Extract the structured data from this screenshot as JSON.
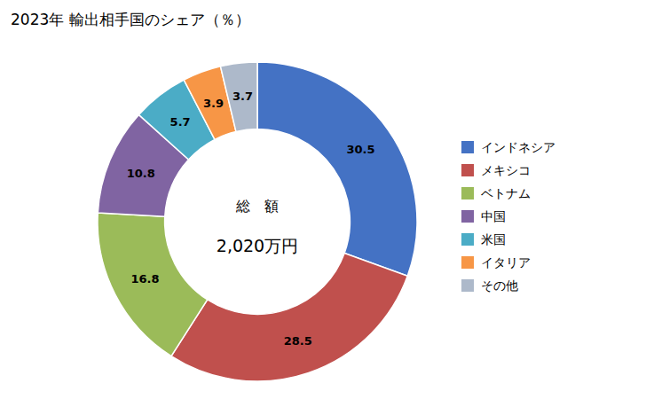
{
  "chart_data": {
    "type": "donut",
    "title": "2023年 輸出相手国のシェア（％）",
    "annotations": [
      "総　額",
      "2,020万円"
    ],
    "categories": [
      "インドネシア",
      "メキシコ",
      "ベトナム",
      "中国",
      "米国",
      "イタリア",
      "その他"
    ],
    "values": [
      30.5,
      28.5,
      16.8,
      10.8,
      5.7,
      3.9,
      3.7
    ],
    "colors": [
      "#4472C4",
      "#C0504D",
      "#9BBB59",
      "#8064A2",
      "#4BACC6",
      "#F79646",
      "#ADB9CA"
    ],
    "data_labels": true
  }
}
